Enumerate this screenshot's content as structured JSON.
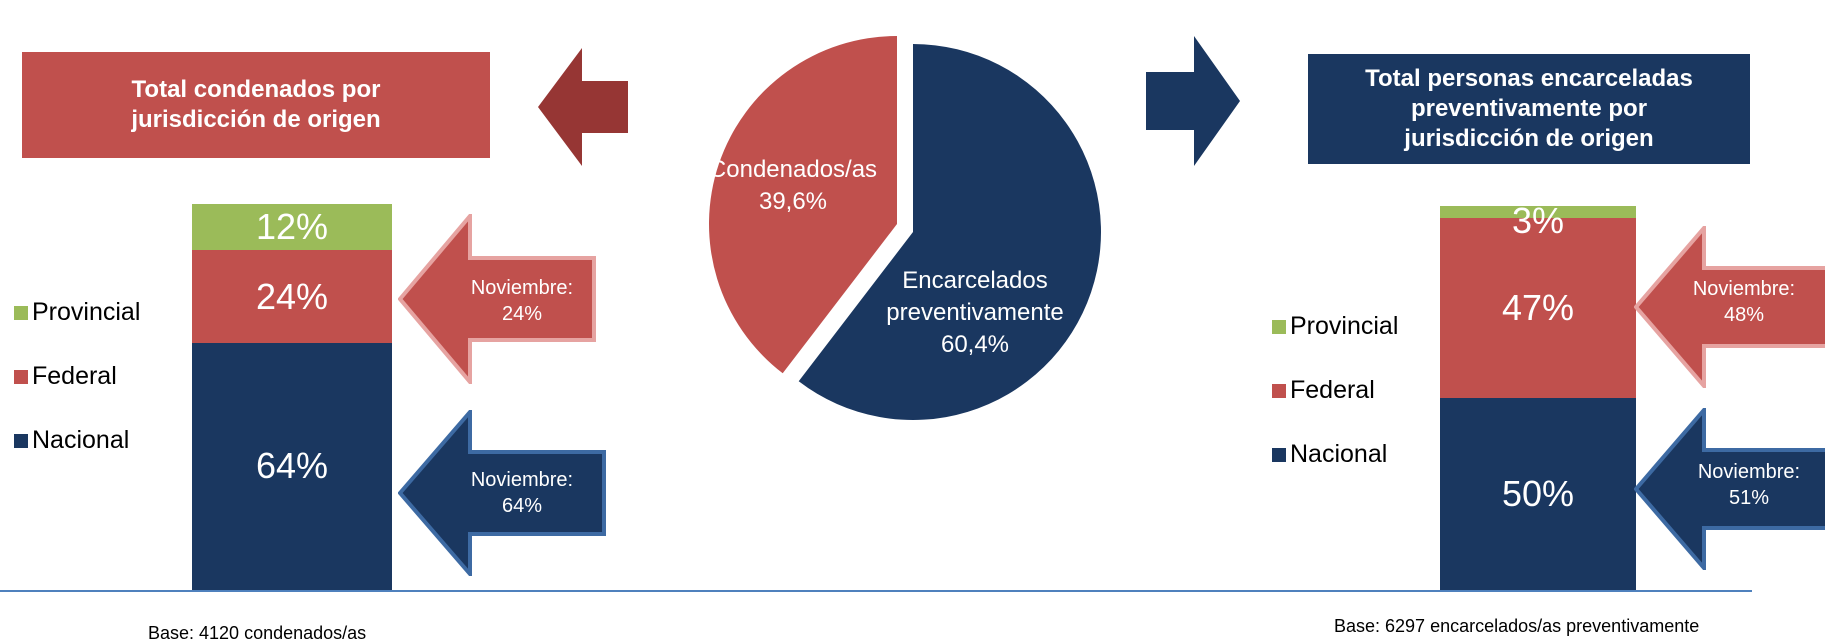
{
  "colors": {
    "nacional": "#1a3760",
    "federal": "#c0504d",
    "provincial": "#9bbb59",
    "arrow_dark_red": "#963634"
  },
  "left_title": {
    "line1": "Total condenados por",
    "line2": "jurisdicción de origen"
  },
  "right_title": {
    "line1": "Total personas encarceladas",
    "line2": "preventivamente por",
    "line3": "jurisdicción de origen"
  },
  "legend": {
    "provincial": "Provincial",
    "federal": "Federal",
    "nacional": "Nacional"
  },
  "chart_data": [
    {
      "type": "pie",
      "slices": [
        {
          "name": "Condenados/as",
          "value": 39.6,
          "label_line1": "Condenados/as",
          "label_line2": "39,6%",
          "color": "#c0504d"
        },
        {
          "name": "Encarcelados preventivamente",
          "value": 60.4,
          "label_line1": "Encarcelados",
          "label_line2": "preventivamente",
          "label_line3": "60,4%",
          "color": "#1a3760"
        }
      ]
    },
    {
      "type": "bar",
      "title": "Total condenados por jurisdicción de origen",
      "stacked": true,
      "series": [
        {
          "name": "Nacional",
          "value": 64,
          "label": "64%"
        },
        {
          "name": "Federal",
          "value": 24,
          "label": "24%"
        },
        {
          "name": "Provincial",
          "value": 12,
          "label": "12%"
        }
      ],
      "callouts": [
        {
          "line1": "Noviembre:",
          "line2": "24%"
        },
        {
          "line1": "Noviembre:",
          "line2": "64%"
        }
      ],
      "base": "Base: 4120 condenados/as"
    },
    {
      "type": "bar",
      "title": "Total personas encarceladas preventivamente por jurisdicción de origen",
      "stacked": true,
      "series": [
        {
          "name": "Nacional",
          "value": 50,
          "label": "50%"
        },
        {
          "name": "Federal",
          "value": 47,
          "label": "47%"
        },
        {
          "name": "Provincial",
          "value": 3,
          "label": "3%"
        }
      ],
      "callouts": [
        {
          "line1": "Noviembre:",
          "line2": "48%"
        },
        {
          "line1": "Noviembre:",
          "line2": "51%"
        }
      ],
      "base": "Base: 6297 encarcelados/as preventivamente"
    }
  ]
}
